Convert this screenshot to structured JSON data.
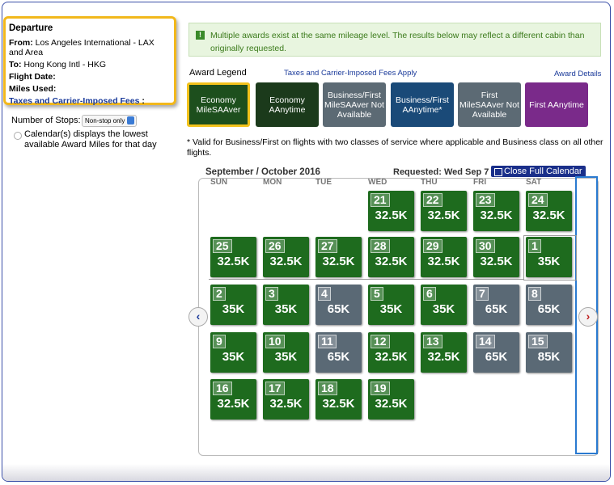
{
  "departure": {
    "title": "Departure",
    "from_label": "From:",
    "from_value": "Los Angeles International - LAX and Area",
    "to_label": "To:",
    "to_value": "Hong Kong Intl - HKG",
    "flight_date_label": "Flight Date:",
    "miles_used_label": "Miles Used:",
    "fees_link": "Taxes and Carrier-Imposed Fees",
    "fees_colon": ":"
  },
  "stops": {
    "label": "Number of Stops:",
    "selected": "Non-stop only",
    "radio_label": "Calendar(s) displays the lowest available Award Miles for that day"
  },
  "notice": "Multiple awards exist at the same mileage level. The results below may reflect a different cabin than originally requested.",
  "legend": {
    "title": "Award Legend",
    "fees_link": "Taxes and Carrier-Imposed Fees Apply",
    "details_link": "Award Details",
    "items": [
      {
        "label": "Economy MileSAAver",
        "color": "#1d4f1d"
      },
      {
        "label": "Economy AAnytime",
        "color": "#1b3a1b"
      },
      {
        "label": "Business/First MileSAAver Not Available",
        "color": "#5c6a74"
      },
      {
        "label": "Business/First AAnytime*",
        "color": "#1a4a78"
      },
      {
        "label": "First MileSAAver Not Available",
        "color": "#5c6a74"
      },
      {
        "label": "First AAnytime",
        "color": "#7a2a8a"
      }
    ]
  },
  "footnote": "* Valid for Business/First on flights with two classes of service where applicable and Business class on all other flights.",
  "calendar": {
    "title": "September / October 2016",
    "requested": "Requested: Wed Sep 7",
    "close_button": "Close Full Calendar",
    "weekdays": [
      "SUN",
      "MON",
      "TUE",
      "WED",
      "THU",
      "FRI",
      "SAT"
    ],
    "days": [
      {
        "day": 21,
        "miles": "32.5K",
        "color": "#1e6b1e"
      },
      {
        "day": 22,
        "miles": "32.5K",
        "color": "#1e6b1e"
      },
      {
        "day": 23,
        "miles": "32.5K",
        "color": "#1e6b1e"
      },
      {
        "day": 24,
        "miles": "32.5K",
        "color": "#1e6b1e"
      },
      {
        "day": 25,
        "miles": "32.5K",
        "color": "#1e6b1e"
      },
      {
        "day": 26,
        "miles": "32.5K",
        "color": "#1e6b1e"
      },
      {
        "day": 27,
        "miles": "32.5K",
        "color": "#1e6b1e"
      },
      {
        "day": 28,
        "miles": "32.5K",
        "color": "#1e6b1e"
      },
      {
        "day": 29,
        "miles": "32.5K",
        "color": "#1e6b1e"
      },
      {
        "day": 30,
        "miles": "32.5K",
        "color": "#1e6b1e"
      },
      {
        "day": 1,
        "miles": "35K",
        "color": "#1e6b1e"
      },
      {
        "day": 2,
        "miles": "35K",
        "color": "#1e6b1e"
      },
      {
        "day": 3,
        "miles": "35K",
        "color": "#1e6b1e"
      },
      {
        "day": 4,
        "miles": "65K",
        "color": "#5a6975"
      },
      {
        "day": 5,
        "miles": "35K",
        "color": "#1e6b1e"
      },
      {
        "day": 6,
        "miles": "35K",
        "color": "#1e6b1e"
      },
      {
        "day": 7,
        "miles": "65K",
        "color": "#5a6975"
      },
      {
        "day": 8,
        "miles": "65K",
        "color": "#5a6975"
      },
      {
        "day": 9,
        "miles": "35K",
        "color": "#1e6b1e"
      },
      {
        "day": 10,
        "miles": "35K",
        "color": "#1e6b1e"
      },
      {
        "day": 11,
        "miles": "65K",
        "color": "#5a6975"
      },
      {
        "day": 12,
        "miles": "32.5K",
        "color": "#1e6b1e"
      },
      {
        "day": 13,
        "miles": "32.5K",
        "color": "#1e6b1e"
      },
      {
        "day": 14,
        "miles": "65K",
        "color": "#5a6975"
      },
      {
        "day": 15,
        "miles": "85K",
        "color": "#5a6975"
      },
      {
        "day": 16,
        "miles": "32.5K",
        "color": "#1e6b1e"
      },
      {
        "day": 17,
        "miles": "32.5K",
        "color": "#1e6b1e"
      },
      {
        "day": 18,
        "miles": "32.5K",
        "color": "#1e6b1e"
      },
      {
        "day": 19,
        "miles": "32.5K",
        "color": "#1e6b1e"
      }
    ]
  }
}
